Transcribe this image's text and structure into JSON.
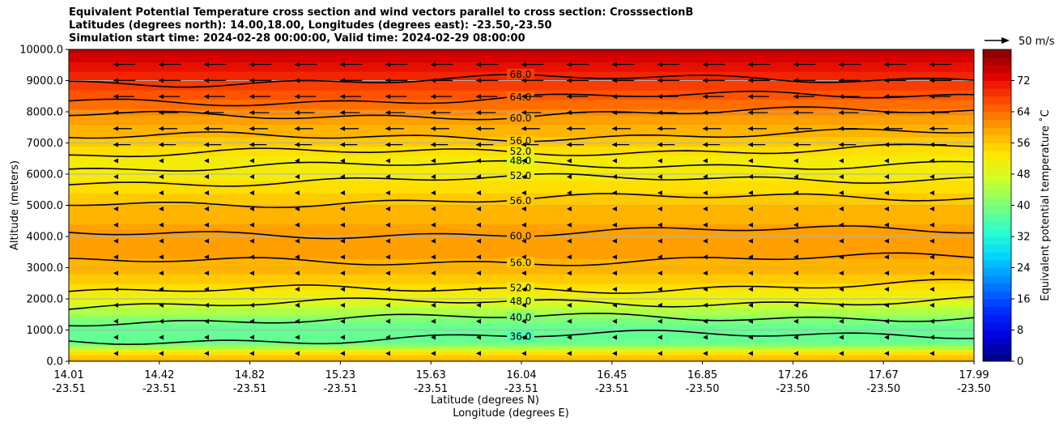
{
  "title_lines": [
    "Equivalent Potential Temperature cross section and wind vectors parallel to cross section: CrosssectionB",
    "Latitudes (degrees north): 14.00,18.00, Longitudes (degrees east): -23.50,-23.50",
    "Simulation start time: 2024-02-28 00:00:00, Valid time: 2024-02-29 08:00:00"
  ],
  "colors": {
    "colormap": [
      "#00007f",
      "#0000e0",
      "#0030ff",
      "#0080ff",
      "#00d4ff",
      "#29ffce",
      "#7dff7a",
      "#ceff29",
      "#ffe600",
      "#ff9f00",
      "#ff4b00",
      "#e00000",
      "#7f0000"
    ],
    "contour": "#000000",
    "grid": "#b0b0b0"
  },
  "chart_data": {
    "type": "heatmap",
    "subtype": "filled contour cross section with contour lines and wind vectors",
    "xlabel": "Latitude (degrees N)",
    "xlabel2": "Longitude (degrees E)",
    "ylabel": "Altitude (meters)",
    "ylim": [
      0,
      10000
    ],
    "y_ticks": [
      "0.0",
      "1000.0",
      "2000.0",
      "3000.0",
      "4000.0",
      "5000.0",
      "6000.0",
      "7000.0",
      "8000.0",
      "9000.0",
      "10000.0"
    ],
    "x_ticks": [
      {
        "lat": "14.01",
        "lon": "-23.51"
      },
      {
        "lat": "14.42",
        "lon": "-23.51"
      },
      {
        "lat": "14.82",
        "lon": "-23.51"
      },
      {
        "lat": "15.23",
        "lon": "-23.51"
      },
      {
        "lat": "15.63",
        "lon": "-23.51"
      },
      {
        "lat": "16.04",
        "lon": "-23.51"
      },
      {
        "lat": "16.45",
        "lon": "-23.51"
      },
      {
        "lat": "16.85",
        "lon": "-23.50"
      },
      {
        "lat": "17.26",
        "lon": "-23.50"
      },
      {
        "lat": "17.67",
        "lon": "-23.50"
      },
      {
        "lat": "17.99",
        "lon": "-23.50"
      }
    ],
    "colorbar": {
      "label": "Equivalent potential temperature ˚C",
      "range": [
        0,
        80
      ],
      "ticks": [
        "0",
        "8",
        "16",
        "24",
        "32",
        "40",
        "48",
        "56",
        "64",
        "72"
      ]
    },
    "quiver_key": "50 m/s",
    "grid": true,
    "profile": [
      {
        "altitude": 0,
        "theta_e": 60
      },
      {
        "altitude": 300,
        "theta_e": 52
      },
      {
        "altitude": 500,
        "theta_e": 40
      },
      {
        "altitude": 800,
        "theta_e": 37
      },
      {
        "altitude": 1200,
        "theta_e": 39
      },
      {
        "altitude": 1600,
        "theta_e": 44
      },
      {
        "altitude": 2000,
        "theta_e": 50
      },
      {
        "altitude": 2600,
        "theta_e": 56
      },
      {
        "altitude": 3300,
        "theta_e": 59
      },
      {
        "altitude": 4000,
        "theta_e": 60
      },
      {
        "altitude": 4800,
        "theta_e": 58
      },
      {
        "altitude": 5600,
        "theta_e": 54
      },
      {
        "altitude": 6300,
        "theta_e": 51
      },
      {
        "altitude": 7000,
        "theta_e": 56
      },
      {
        "altitude": 7800,
        "theta_e": 60
      },
      {
        "altitude": 8500,
        "theta_e": 66
      },
      {
        "altitude": 9200,
        "theta_e": 70
      },
      {
        "altitude": 10000,
        "theta_e": 76
      }
    ],
    "contours": [
      {
        "level": "36.0",
        "altitude": 650
      },
      {
        "level": "40.0",
        "altitude": 1300
      },
      {
        "level": "48.0",
        "altitude": 1800
      },
      {
        "level": "52.0",
        "altitude": 2200
      },
      {
        "level": "56.0",
        "altitude": 3150
      },
      {
        "level": "60.0",
        "altitude": 4050
      },
      {
        "level": "56.0",
        "altitude": 5050
      },
      {
        "level": "52.0",
        "altitude": 5750
      },
      {
        "level": "48.0",
        "altitude": 6200
      },
      {
        "level": "52.0",
        "altitude": 6600
      },
      {
        "level": "56.0",
        "altitude": 7150
      },
      {
        "level": "60.0",
        "altitude": 7850
      },
      {
        "level": "64.0",
        "altitude": 8300
      },
      {
        "level": "68.0",
        "altitude": 8950
      }
    ]
  }
}
